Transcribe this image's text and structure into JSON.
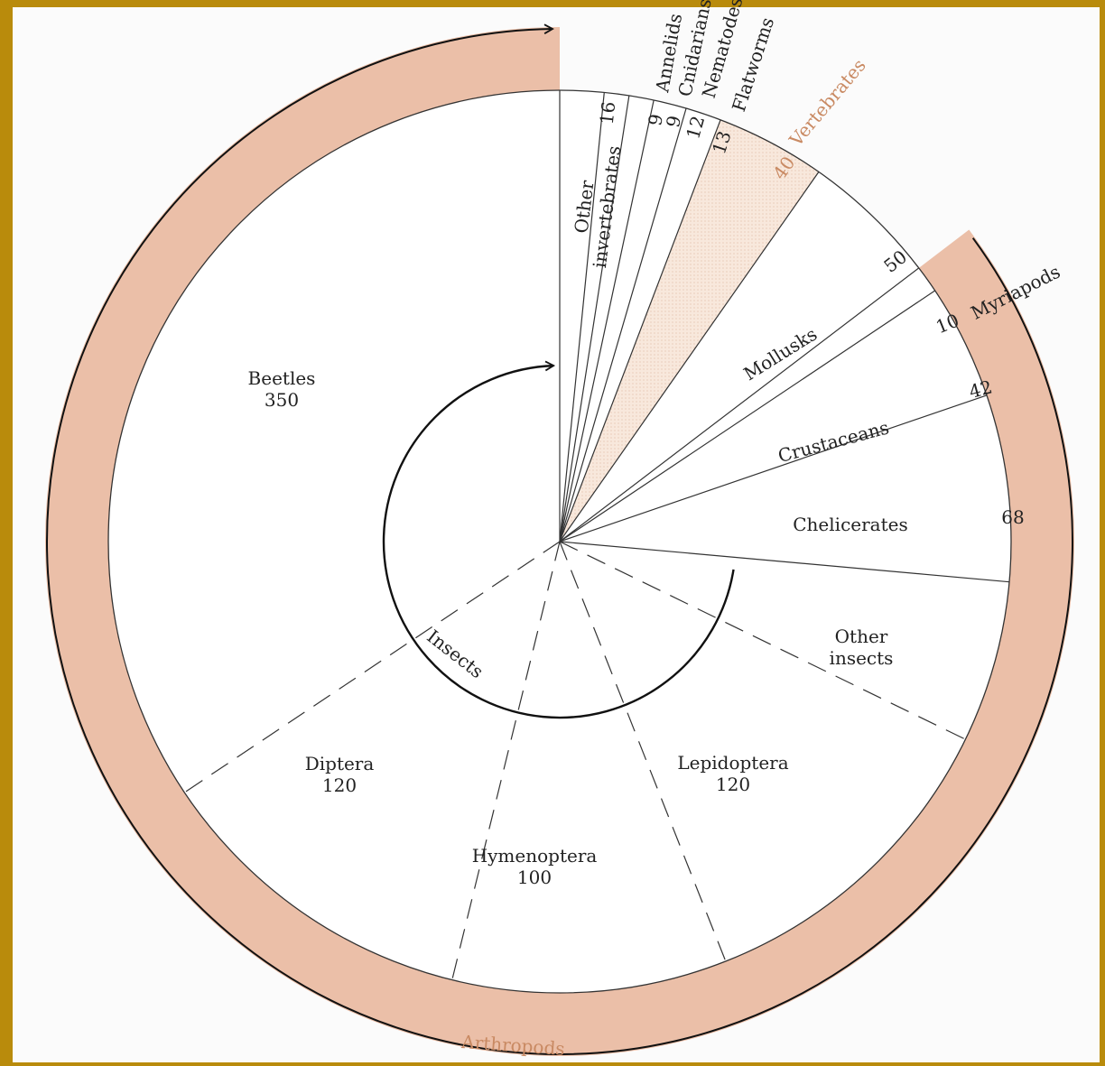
{
  "chart_data": {
    "type": "pie",
    "slices": [
      {
        "name": "Other invertebrates",
        "value": 16,
        "value_label": "16"
      },
      {
        "name": "Annelids",
        "value": 9,
        "value_label": "9"
      },
      {
        "name": "Cnidarians",
        "value": 9,
        "value_label": "9"
      },
      {
        "name": "Nematodes",
        "value": 12,
        "value_label": "12"
      },
      {
        "name": "Flatworms",
        "value": 13,
        "value_label": "13"
      },
      {
        "name": "Vertebrates",
        "value": 40,
        "value_label": "40",
        "highlight": true
      },
      {
        "name": "Mollusks",
        "value": 50,
        "value_label": "50"
      },
      {
        "name": "Myriapods",
        "value": 10,
        "value_label": "10"
      },
      {
        "name": "Crustaceans",
        "value": 42,
        "value_label": "42"
      },
      {
        "name": "Chelicerates",
        "value": 68,
        "value_label": "68"
      },
      {
        "name": "Other insects",
        "value": 59
      },
      {
        "name": "Lepidoptera",
        "value": 120,
        "value_label": "120"
      },
      {
        "name": "Hymenoptera",
        "value": 100,
        "value_label": "100"
      },
      {
        "name": "Diptera",
        "value": 120,
        "value_label": "120"
      },
      {
        "name": "Beetles",
        "value": 350,
        "value_label": "350"
      }
    ],
    "groups": [
      {
        "name": "Arthropods",
        "members": [
          "Myriapods",
          "Crustaceans",
          "Chelicerates",
          "Other insects",
          "Lepidoptera",
          "Hymenoptera",
          "Diptera",
          "Beetles"
        ]
      },
      {
        "name": "Insects",
        "members": [
          "Other insects",
          "Lepidoptera",
          "Hymenoptera",
          "Diptera",
          "Beetles"
        ]
      }
    ],
    "colors": {
      "arthropod_band": "#ebbfa8",
      "vertebrates_fill": "#f7e6da",
      "accent_text": "#c98a63",
      "frame": "#b98b0c"
    }
  },
  "labels": {
    "other_invertebrates_1": "Other",
    "other_invertebrates_2": "invertebrates",
    "annelids": "Annelids",
    "cnidarians": "Cnidarians",
    "nematodes": "Nematodes",
    "flatworms": "Flatworms",
    "vertebrates": "Vertebrates",
    "mollusks": "Mollusks",
    "myriapods": "Myriapods",
    "crustaceans": "Crustaceans",
    "chelicerates": "Chelicerates",
    "other_insects_1": "Other",
    "other_insects_2": "insects",
    "beetles": "Beetles",
    "diptera": "Diptera",
    "hymenoptera": "Hymenoptera",
    "lepidoptera": "Lepidoptera",
    "insects": "Insects",
    "arthropods": "Arthropods"
  }
}
